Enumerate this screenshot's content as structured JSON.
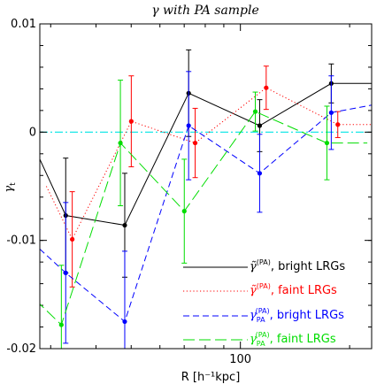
{
  "chart_data": {
    "type": "line",
    "title": "γ with PA sample",
    "xlabel": "R [h⁻¹kpc]",
    "ylabel": "γ",
    "ylabel_sub": "t",
    "x_scale": "log",
    "xlim": [
      28,
      230
    ],
    "ylim": [
      -0.02,
      0.01
    ],
    "x_ticks": [
      100
    ],
    "x_tick_labels": [
      "100"
    ],
    "y_ticks": [
      -0.02,
      -0.01,
      0,
      0.01
    ],
    "y_tick_labels": [
      "-0.02",
      "-0.01",
      "0",
      "0.01"
    ],
    "zero_line": {
      "y": 0,
      "color": "#00e5e5"
    },
    "legend_position": "bottom-right",
    "series": [
      {
        "name": "γ̃(PA), bright LRGs",
        "name_main": "γ̃",
        "name_sup": "(PA)",
        "name_rest": ", bright LRGs",
        "color": "#000000",
        "dash": "solid",
        "offset": 0,
        "x": [
          28,
          33,
          48,
          72,
          113,
          178,
          230
        ],
        "y": [
          -0.0025,
          -0.0077,
          -0.0086,
          0.0036,
          0.0006,
          0.0045,
          0.0045
        ],
        "err": [
          0,
          0.0053,
          0.0048,
          0.004,
          0.0024,
          0.0018,
          0
        ],
        "marker": [
          false,
          true,
          true,
          true,
          true,
          true,
          false
        ]
      },
      {
        "name": "γ̃(PA), faint LRGs",
        "name_main": "γ̃",
        "name_sup": "(PA)",
        "name_rest": ", faint LRGs",
        "color": "#ff0000",
        "dash": "1.2,2.6",
        "offset": 0.018,
        "x": [
          28,
          33,
          48,
          72,
          113,
          178,
          230
        ],
        "y": [
          -0.005,
          -0.0099,
          0.001,
          -0.001,
          0.0041,
          0.0007,
          0.0007
        ],
        "err": [
          0,
          0.0044,
          0.0042,
          0.0032,
          0.002,
          0.0012,
          0
        ],
        "marker": [
          false,
          true,
          true,
          true,
          true,
          true,
          false
        ]
      },
      {
        "name": "γPA(PA), bright LRGs",
        "name_main": "γ",
        "name_sup": "(PA)",
        "name_sub": "PA",
        "name_rest": ", bright LRGs",
        "color": "#0000ff",
        "dash": "7,4",
        "offset": 0,
        "x": [
          28,
          33,
          48,
          72,
          113,
          178,
          230
        ],
        "y": [
          -0.0108,
          -0.013,
          -0.0175,
          0.0006,
          -0.0038,
          0.0018,
          0.0025
        ],
        "err": [
          0,
          0.0065,
          0.0065,
          0.005,
          0.0036,
          0.0034,
          0
        ],
        "marker": [
          false,
          true,
          true,
          true,
          true,
          true,
          false
        ]
      },
      {
        "name": "γPA(PA), faint LRGs",
        "name_main": "γ",
        "name_sup": "(PA)",
        "name_sub": "PA",
        "name_rest": ", faint LRGs",
        "color": "#00dd00",
        "dash": "13,5",
        "offset": -0.012,
        "x": [
          28,
          33,
          48,
          72,
          113,
          178,
          230
        ],
        "y": [
          -0.0155,
          -0.0178,
          -0.001,
          -0.0073,
          0.0019,
          -0.001,
          -0.001
        ],
        "err": [
          0,
          0.0055,
          0.0058,
          0.0048,
          0.0018,
          0.0034,
          0
        ],
        "marker": [
          false,
          true,
          true,
          true,
          true,
          true,
          false
        ]
      }
    ]
  }
}
